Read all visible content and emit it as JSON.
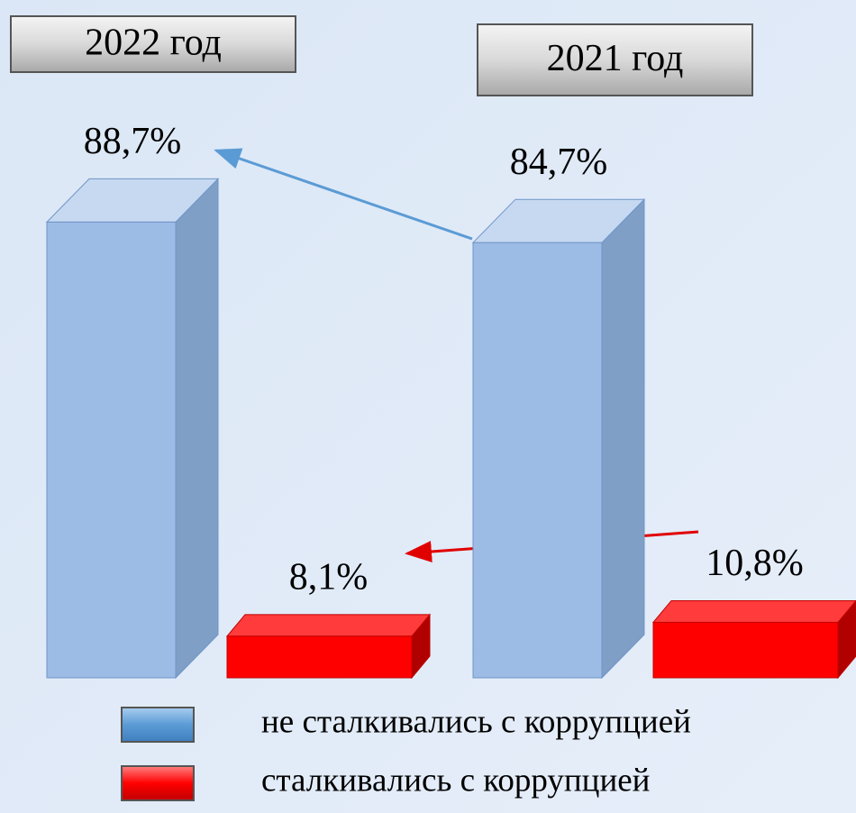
{
  "chart_data": {
    "type": "bar3d",
    "categories": [
      "2022 год",
      "2021 год"
    ],
    "series": [
      {
        "name": "не сталкивались с коррупцией",
        "color": "#9dbce5",
        "values": [
          88.7,
          84.7
        ],
        "value_labels": [
          "88,7%",
          "84,7%"
        ]
      },
      {
        "name": "сталкивались с коррупцией",
        "color": "#ff0000",
        "values": [
          8.1,
          10.8
        ],
        "value_labels": [
          "8,1%",
          "10,8%"
        ]
      }
    ]
  }
}
